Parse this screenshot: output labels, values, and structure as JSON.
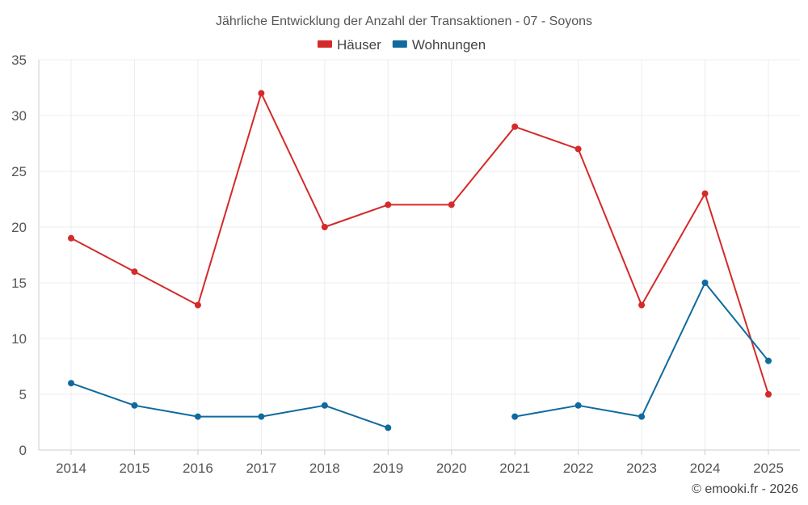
{
  "chart_data": {
    "type": "line",
    "title": "Jährliche Entwicklung der Anzahl der Transaktionen - 07 - Soyons",
    "categories": [
      "2014",
      "2015",
      "2016",
      "2017",
      "2018",
      "2019",
      "2020",
      "2021",
      "2022",
      "2023",
      "2024",
      "2025"
    ],
    "ylim": [
      0,
      35
    ],
    "yticks": [
      0,
      5,
      10,
      15,
      20,
      25,
      30,
      35
    ],
    "grid": true,
    "legend_position": "top-center",
    "series": [
      {
        "name": "Häuser",
        "color": "#d42a2a",
        "values": [
          19,
          16,
          13,
          32,
          20,
          22,
          22,
          29,
          27,
          13,
          23,
          5
        ]
      },
      {
        "name": "Wohnungen",
        "color": "#0f6a9e",
        "values": [
          6,
          4,
          3,
          3,
          4,
          2,
          null,
          3,
          4,
          3,
          15,
          8
        ]
      }
    ]
  },
  "credit": "© emooki.fr - 2026"
}
